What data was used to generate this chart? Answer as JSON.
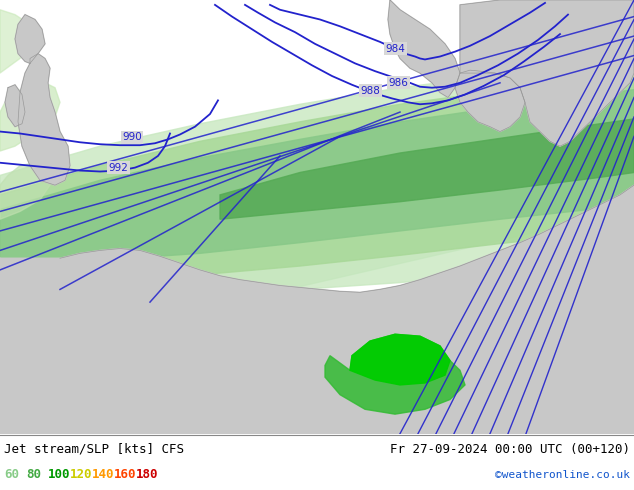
{
  "title_left": "Jet stream/SLP [kts] CFS",
  "title_right": "Fr 27-09-2024 00:00 UTC (00+120)",
  "credit": "©weatheronline.co.uk",
  "legend_values": [
    60,
    80,
    100,
    120,
    140,
    160,
    180
  ],
  "legend_colors_actual": [
    "#88cc88",
    "#44aa44",
    "#009900",
    "#cccc00",
    "#ff9900",
    "#ff4400",
    "#cc0000"
  ],
  "sea_color": "#d8d8d8",
  "land_color": "#c8c8c8",
  "contour_color": "#2222cc",
  "jet_band_colors": [
    "#c8e8c8",
    "#a8d8a8",
    "#88cc88",
    "#55aa55",
    "#22aa22",
    "#009900"
  ],
  "figsize": [
    6.34,
    4.9
  ],
  "dpi": 100
}
